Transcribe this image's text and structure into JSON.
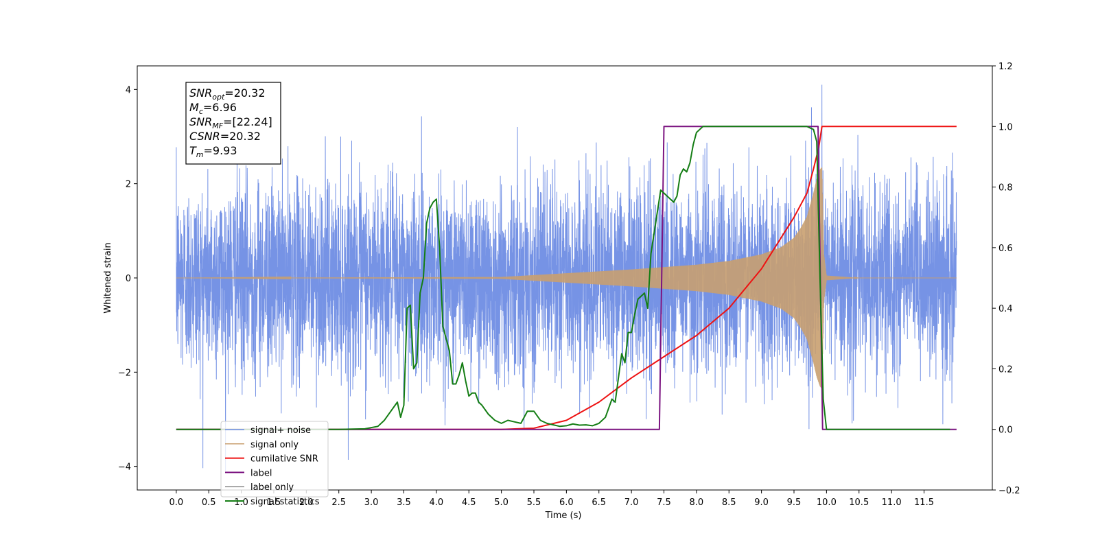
{
  "chart_data": {
    "type": "line",
    "xlabel": "Time (s)",
    "ylabel_left": "Whitened strain",
    "ylabel_right": "",
    "xlim": [
      -0.6,
      12.55
    ],
    "ylim_left": [
      -4.5,
      4.5
    ],
    "ylim_right": [
      -0.2,
      1.2
    ],
    "x_ticks": [
      0.0,
      0.5,
      1.0,
      1.5,
      2.0,
      2.5,
      3.0,
      3.5,
      4.0,
      4.5,
      5.0,
      5.5,
      6.0,
      6.5,
      7.0,
      7.5,
      8.0,
      8.5,
      9.0,
      9.5,
      10.0,
      10.5,
      11.0,
      11.5
    ],
    "x_tick_labels": [
      "0.0",
      "0.5",
      "1.0",
      "1.5",
      "2.0",
      "2.5",
      "3.0",
      "3.5",
      "4.0",
      "4.5",
      "5.0",
      "5.5",
      "6.0",
      "6.5",
      "7.0",
      "7.5",
      "8.0",
      "8.5",
      "9.0",
      "9.5",
      "10.0",
      "10.5",
      "11.0",
      "11.5"
    ],
    "y_left_ticks": [
      -4,
      -2,
      0,
      2,
      4
    ],
    "y_left_tick_labels": [
      "−4",
      "−2",
      "0",
      "2",
      "4"
    ],
    "y_right_ticks": [
      -0.2,
      0.0,
      0.2,
      0.4,
      0.6,
      0.8,
      1.0,
      1.2
    ],
    "y_right_tick_labels": [
      "−0.2",
      "0.0",
      "0.2",
      "0.4",
      "0.6",
      "0.8",
      "1.0",
      "1.2"
    ],
    "grid": false,
    "legend_position": "lower-left",
    "info_box": {
      "lines": [
        {
          "main": "SNR",
          "sub": "opt",
          "rest": "=20.32"
        },
        {
          "main": "M",
          "sub": "c",
          "rest": "=6.96"
        },
        {
          "main": "SNR",
          "sub": "MF",
          "rest": "=[22.24]"
        },
        {
          "main": "CSNR",
          "sub": "",
          "rest": "=20.32"
        },
        {
          "main": "T",
          "sub": "m",
          "rest": "=9.93"
        }
      ]
    },
    "series": [
      {
        "name": "signal+ noise",
        "axis": "left",
        "color": "#6f8de4",
        "kind": "noise",
        "x_range": [
          0.0,
          12.0
        ],
        "std": 1.0,
        "peak_x": 9.93,
        "peak_value": 4.1
      },
      {
        "name": "signal only",
        "axis": "left",
        "color": "#c9a070",
        "kind": "chirp",
        "merger_time": 9.93,
        "amplitude_points": {
          "x": [
            0.0,
            5.0,
            6.0,
            7.0,
            8.0,
            8.5,
            9.0,
            9.3,
            9.5,
            9.6,
            9.7,
            9.8,
            9.85,
            9.9,
            9.93,
            9.96,
            10.0,
            10.5,
            12.0
          ],
          "y": [
            0.0,
            0.02,
            0.1,
            0.18,
            0.28,
            0.36,
            0.5,
            0.65,
            0.85,
            1.05,
            1.3,
            1.8,
            2.1,
            2.3,
            2.35,
            0.5,
            0.05,
            0.0,
            0.0
          ]
        }
      },
      {
        "name": "cumilative SNR",
        "axis": "right",
        "color": "#ee1111",
        "x": [
          0.0,
          4.5,
          5.0,
          5.5,
          6.0,
          6.5,
          7.0,
          7.5,
          8.0,
          8.5,
          9.0,
          9.5,
          9.7,
          9.8,
          9.88,
          9.93,
          12.0
        ],
        "y": [
          0.0,
          0.0,
          0.0,
          0.004,
          0.03,
          0.09,
          0.17,
          0.24,
          0.31,
          0.4,
          0.53,
          0.7,
          0.78,
          0.86,
          0.93,
          1.0,
          1.0
        ]
      },
      {
        "name": "label",
        "axis": "right",
        "color": "#7b1380",
        "x": [
          0.0,
          7.43,
          7.5,
          9.87,
          9.94,
          12.0
        ],
        "y": [
          0.0,
          0.0,
          1.0,
          1.0,
          0.0,
          0.0
        ]
      },
      {
        "name": "label only",
        "axis": "right",
        "color": "#888888",
        "hidden": true,
        "x": [],
        "y": []
      },
      {
        "name": "signal statistics",
        "axis": "right",
        "color": "#147d14",
        "x": [
          0.0,
          2.5,
          2.9,
          3.1,
          3.2,
          3.3,
          3.4,
          3.45,
          3.5,
          3.55,
          3.6,
          3.65,
          3.7,
          3.75,
          3.8,
          3.85,
          3.9,
          3.95,
          4.0,
          4.05,
          4.1,
          4.15,
          4.2,
          4.25,
          4.3,
          4.35,
          4.4,
          4.45,
          4.5,
          4.55,
          4.6,
          4.65,
          4.7,
          4.8,
          4.9,
          5.0,
          5.1,
          5.2,
          5.3,
          5.4,
          5.5,
          5.6,
          5.7,
          5.8,
          5.9,
          6.0,
          6.1,
          6.2,
          6.3,
          6.4,
          6.5,
          6.6,
          6.7,
          6.75,
          6.8,
          6.85,
          6.9,
          6.95,
          7.0,
          7.05,
          7.1,
          7.15,
          7.2,
          7.25,
          7.3,
          7.35,
          7.4,
          7.45,
          7.5,
          7.55,
          7.6,
          7.65,
          7.7,
          7.75,
          7.8,
          7.85,
          7.9,
          7.95,
          8.0,
          8.05,
          8.1,
          8.2,
          8.3,
          8.5,
          9.0,
          9.5,
          9.7,
          9.8,
          9.85,
          9.9,
          9.95,
          10.0,
          10.05,
          11.9
        ],
        "y": [
          0.0,
          0.0,
          0.002,
          0.01,
          0.03,
          0.06,
          0.09,
          0.04,
          0.08,
          0.4,
          0.41,
          0.2,
          0.22,
          0.45,
          0.5,
          0.68,
          0.73,
          0.75,
          0.76,
          0.6,
          0.34,
          0.3,
          0.26,
          0.15,
          0.15,
          0.18,
          0.22,
          0.16,
          0.11,
          0.12,
          0.12,
          0.09,
          0.08,
          0.05,
          0.03,
          0.02,
          0.03,
          0.025,
          0.02,
          0.06,
          0.06,
          0.03,
          0.02,
          0.015,
          0.01,
          0.012,
          0.018,
          0.014,
          0.015,
          0.012,
          0.02,
          0.04,
          0.1,
          0.09,
          0.17,
          0.25,
          0.22,
          0.32,
          0.32,
          0.38,
          0.43,
          0.44,
          0.45,
          0.4,
          0.58,
          0.65,
          0.72,
          0.79,
          0.78,
          0.77,
          0.76,
          0.75,
          0.77,
          0.84,
          0.86,
          0.85,
          0.88,
          0.94,
          0.98,
          0.99,
          1.0,
          1.0,
          1.0,
          1.0,
          1.0,
          1.0,
          1.0,
          0.99,
          0.95,
          0.5,
          0.1,
          0.0,
          0.0,
          0.0
        ]
      }
    ]
  }
}
